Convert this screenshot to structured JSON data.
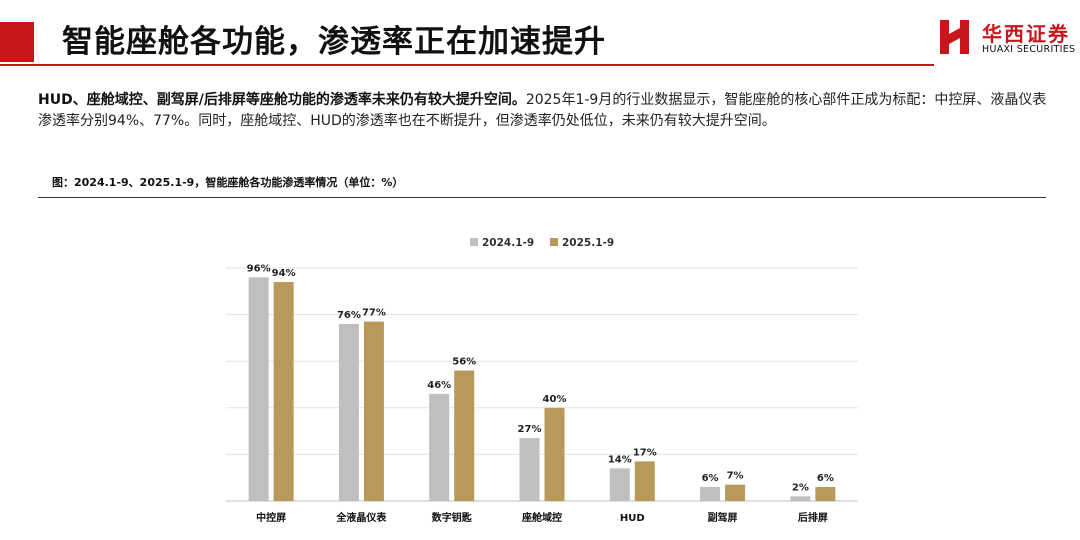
{
  "header": {
    "title": "智能座舱各功能，渗透率正在加速提升",
    "logo_cn": "华西证券",
    "logo_en": "HUAXI SECURITIES",
    "accent_color": "#c8161d"
  },
  "summary": {
    "lead": "HUD、座舱域控、副驾屏/后排屏等座舱功能的渗透率未来仍有较大提升空间。",
    "body": "2025年1-9月的行业数据显示，智能座舱的核心部件正成为标配：中控屏、液晶仪表渗透率分别94%、77%。同时，座舱域控、HUD的渗透率也在不断提升，但渗透率仍处低位，未来仍有较大提升空间。"
  },
  "figure": {
    "caption": "图：2024.1-9、2025.1-9，智能座舱各功能渗透率情况（单位：%）"
  },
  "chart_data": {
    "type": "bar",
    "categories": [
      "中控屏",
      "全液晶仪表",
      "数字钥匙",
      "座舱域控",
      "HUD",
      "副驾屏",
      "后排屏"
    ],
    "series": [
      {
        "name": "2024.1-9",
        "values": [
          96,
          76,
          46,
          27,
          14,
          6,
          2
        ],
        "labels": [
          "96%",
          "76%",
          "46%",
          "27%",
          "14%",
          "6%",
          "2%"
        ],
        "color": "#bfbfbf"
      },
      {
        "name": "2025.1-9",
        "values": [
          94,
          77,
          56,
          40,
          17,
          7,
          6
        ],
        "labels": [
          "94%",
          "77%",
          "56%",
          "40%",
          "17%",
          "7%",
          "6%"
        ],
        "color": "#b8995a"
      }
    ],
    "ylim": [
      0,
      100
    ],
    "grid": true,
    "legend_position": "top-center",
    "xlabel": "",
    "ylabel": ""
  }
}
